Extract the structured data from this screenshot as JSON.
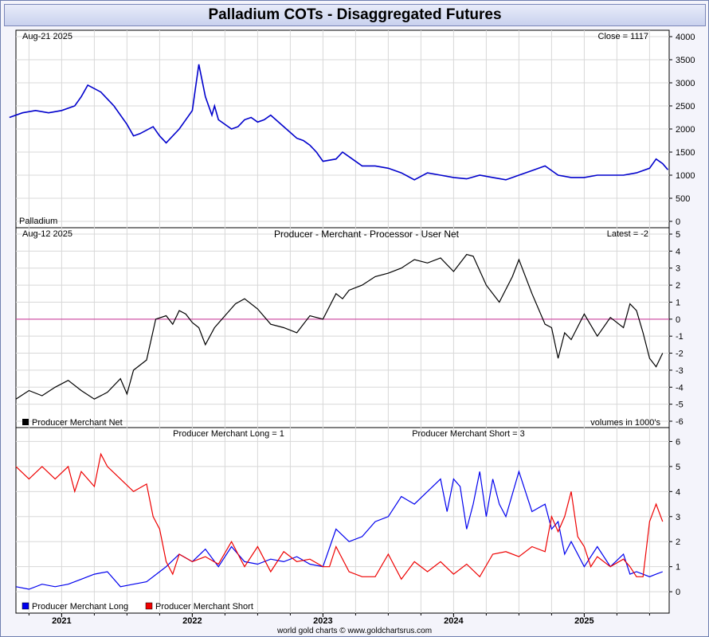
{
  "title": "Palladium COTs - Disaggregated Futures",
  "footer": "world gold charts © www.goldchartsrus.com",
  "colors": {
    "price": "#0000cc",
    "net": "#000000",
    "zero_line": "#cc3399",
    "long": "#0000ee",
    "short": "#ee0000",
    "grid": "#d8d8d8"
  },
  "chart_data": [
    {
      "type": "line",
      "panel": "price",
      "date_label": "Aug-21  2025",
      "readout": "Close = 1117",
      "series_label": "Palladium",
      "ylim": [
        0,
        4000
      ],
      "yticks": [
        "0",
        "500",
        "1000",
        "1500",
        "2000",
        "2500",
        "3000",
        "3500",
        "4000"
      ],
      "x": [
        2020.6,
        2020.7,
        2020.8,
        2020.9,
        2021.0,
        2021.1,
        2021.15,
        2021.2,
        2021.3,
        2021.35,
        2021.4,
        2021.5,
        2021.55,
        2021.6,
        2021.7,
        2021.75,
        2021.8,
        2021.9,
        2021.95,
        2022.0,
        2022.05,
        2022.1,
        2022.15,
        2022.17,
        2022.2,
        2022.3,
        2022.35,
        2022.4,
        2022.45,
        2022.5,
        2022.55,
        2022.6,
        2022.7,
        2022.8,
        2022.85,
        2022.9,
        2022.95,
        2023.0,
        2023.1,
        2023.15,
        2023.2,
        2023.3,
        2023.4,
        2023.5,
        2023.6,
        2023.7,
        2023.8,
        2023.9,
        2024.0,
        2024.1,
        2024.2,
        2024.3,
        2024.4,
        2024.5,
        2024.6,
        2024.7,
        2024.8,
        2024.9,
        2025.0,
        2025.1,
        2025.2,
        2025.3,
        2025.4,
        2025.5,
        2025.55,
        2025.6,
        2025.64
      ],
      "y": [
        2250,
        2350,
        2400,
        2350,
        2400,
        2500,
        2700,
        2950,
        2800,
        2650,
        2500,
        2100,
        1850,
        1900,
        2050,
        1850,
        1700,
        2000,
        2200,
        2400,
        3400,
        2700,
        2300,
        2500,
        2200,
        2000,
        2050,
        2200,
        2250,
        2150,
        2200,
        2300,
        2050,
        1800,
        1750,
        1650,
        1500,
        1300,
        1350,
        1500,
        1400,
        1200,
        1200,
        1150,
        1050,
        900,
        1050,
        1000,
        950,
        920,
        1000,
        950,
        900,
        1000,
        1100,
        1200,
        1000,
        950,
        950,
        1000,
        1000,
        1000,
        1050,
        1150,
        1350,
        1250,
        1117
      ],
      "xlim": [
        2020.65,
        2025.65
      ]
    },
    {
      "type": "line",
      "panel": "net",
      "date_label": "Aug-12  2025",
      "title": "Producer - Merchant - Processor - User Net",
      "readout": "Latest = -2",
      "legend": "Producer Merchant Net",
      "note": "volumes in 1000's",
      "ylim": [
        -6,
        5
      ],
      "yticks": [
        "-6",
        "-5",
        "-4",
        "-3",
        "-2",
        "-1",
        "0",
        "1",
        "2",
        "3",
        "4",
        "5"
      ],
      "x": [
        2020.65,
        2020.75,
        2020.85,
        2020.95,
        2021.05,
        2021.15,
        2021.25,
        2021.35,
        2021.45,
        2021.5,
        2021.55,
        2021.65,
        2021.72,
        2021.8,
        2021.85,
        2021.9,
        2021.95,
        2022.0,
        2022.05,
        2022.1,
        2022.17,
        2022.25,
        2022.33,
        2022.4,
        2022.5,
        2022.6,
        2022.7,
        2022.8,
        2022.9,
        2023.0,
        2023.1,
        2023.15,
        2023.2,
        2023.3,
        2023.4,
        2023.5,
        2023.6,
        2023.7,
        2023.8,
        2023.9,
        2024.0,
        2024.05,
        2024.1,
        2024.15,
        2024.25,
        2024.35,
        2024.45,
        2024.5,
        2024.6,
        2024.7,
        2024.75,
        2024.8,
        2024.85,
        2024.9,
        2025.0,
        2025.1,
        2025.2,
        2025.3,
        2025.35,
        2025.4,
        2025.45,
        2025.5,
        2025.55,
        2025.6
      ],
      "y": [
        -4.7,
        -4.2,
        -4.5,
        -4.0,
        -3.6,
        -4.2,
        -4.7,
        -4.3,
        -3.5,
        -4.4,
        -3.0,
        -2.4,
        0.0,
        0.2,
        -0.3,
        0.5,
        0.3,
        -0.2,
        -0.5,
        -1.5,
        -0.5,
        0.2,
        0.9,
        1.2,
        0.6,
        -0.3,
        -0.5,
        -0.8,
        0.2,
        0.0,
        1.5,
        1.2,
        1.7,
        2.0,
        2.5,
        2.7,
        3.0,
        3.5,
        3.3,
        3.6,
        2.8,
        3.3,
        3.8,
        3.7,
        2.0,
        1.0,
        2.5,
        3.5,
        1.5,
        -0.3,
        -0.5,
        -2.3,
        -0.8,
        -1.2,
        0.3,
        -1.0,
        0.1,
        -0.5,
        0.9,
        0.5,
        -0.8,
        -2.3,
        -2.8,
        -2.0
      ],
      "xlim": [
        2020.65,
        2025.65
      ]
    },
    {
      "type": "line",
      "panel": "long_short",
      "long_readout": "Producer Merchant Long = 1",
      "short_readout": "Producer Merchant Short = 3",
      "ylim": [
        -0.6,
        6.3
      ],
      "yticks": [
        "0",
        "1",
        "2",
        "3",
        "4",
        "5",
        "6"
      ],
      "series": [
        {
          "name": "Producer Merchant Long",
          "x": [
            2020.65,
            2020.75,
            2020.85,
            2020.95,
            2021.05,
            2021.15,
            2021.25,
            2021.35,
            2021.45,
            2021.55,
            2021.65,
            2021.75,
            2021.8,
            2021.9,
            2022.0,
            2022.1,
            2022.2,
            2022.3,
            2022.4,
            2022.5,
            2022.6,
            2022.7,
            2022.8,
            2022.9,
            2023.0,
            2023.1,
            2023.2,
            2023.3,
            2023.4,
            2023.5,
            2023.6,
            2023.7,
            2023.8,
            2023.9,
            2023.95,
            2024.0,
            2024.05,
            2024.1,
            2024.15,
            2024.2,
            2024.25,
            2024.3,
            2024.35,
            2024.4,
            2024.5,
            2024.6,
            2024.7,
            2024.75,
            2024.8,
            2024.85,
            2024.9,
            2025.0,
            2025.1,
            2025.2,
            2025.3,
            2025.35,
            2025.4,
            2025.5,
            2025.55,
            2025.6
          ],
          "y": [
            0.2,
            0.1,
            0.3,
            0.2,
            0.3,
            0.5,
            0.7,
            0.8,
            0.2,
            0.3,
            0.4,
            0.8,
            1.0,
            1.5,
            1.2,
            1.7,
            1.0,
            1.8,
            1.2,
            1.1,
            1.3,
            1.2,
            1.4,
            1.1,
            1.0,
            2.5,
            2.0,
            2.2,
            2.8,
            3.0,
            3.8,
            3.5,
            4.0,
            4.5,
            3.2,
            4.5,
            4.2,
            2.5,
            3.5,
            4.8,
            3.0,
            4.5,
            3.5,
            3.0,
            4.8,
            3.2,
            3.5,
            2.5,
            2.8,
            1.5,
            2.0,
            1.0,
            1.8,
            1.0,
            1.5,
            0.7,
            0.8,
            0.6,
            0.7,
            0.8
          ]
        },
        {
          "name": "Producer Merchant Short",
          "x": [
            2020.65,
            2020.75,
            2020.85,
            2020.95,
            2021.05,
            2021.1,
            2021.15,
            2021.25,
            2021.3,
            2021.35,
            2021.45,
            2021.55,
            2021.65,
            2021.7,
            2021.75,
            2021.8,
            2021.85,
            2021.9,
            2022.0,
            2022.1,
            2022.2,
            2022.3,
            2022.4,
            2022.5,
            2022.6,
            2022.7,
            2022.8,
            2022.9,
            2023.0,
            2023.05,
            2023.1,
            2023.2,
            2023.3,
            2023.4,
            2023.5,
            2023.6,
            2023.7,
            2023.8,
            2023.9,
            2024.0,
            2024.1,
            2024.2,
            2024.3,
            2024.4,
            2024.5,
            2024.6,
            2024.7,
            2024.75,
            2024.8,
            2024.85,
            2024.9,
            2024.95,
            2025.0,
            2025.05,
            2025.1,
            2025.2,
            2025.3,
            2025.35,
            2025.4,
            2025.45,
            2025.5,
            2025.55,
            2025.6
          ],
          "y": [
            5.0,
            4.5,
            5.0,
            4.5,
            5.0,
            4.0,
            4.8,
            4.2,
            5.5,
            5.0,
            4.5,
            4.0,
            4.3,
            3.0,
            2.5,
            1.2,
            0.7,
            1.5,
            1.2,
            1.4,
            1.1,
            2.0,
            1.0,
            1.8,
            0.8,
            1.6,
            1.2,
            1.3,
            1.0,
            1.0,
            1.8,
            0.8,
            0.6,
            0.6,
            1.5,
            0.5,
            1.2,
            0.8,
            1.2,
            0.7,
            1.1,
            0.6,
            1.5,
            1.6,
            1.4,
            1.8,
            1.6,
            3.0,
            2.4,
            3.0,
            4.0,
            2.2,
            1.8,
            1.0,
            1.4,
            1.0,
            1.3,
            1.0,
            0.6,
            0.6,
            2.8,
            3.5,
            2.8
          ]
        }
      ],
      "xlim": [
        2020.65,
        2025.65
      ]
    }
  ],
  "x_axis": {
    "ticks": [
      {
        "label": "2021",
        "x": 2021.0
      },
      {
        "label": "2022",
        "x": 2022.0
      },
      {
        "label": "2023",
        "x": 2023.0
      },
      {
        "label": "2024",
        "x": 2024.0
      },
      {
        "label": "2025",
        "x": 2025.0
      }
    ]
  }
}
